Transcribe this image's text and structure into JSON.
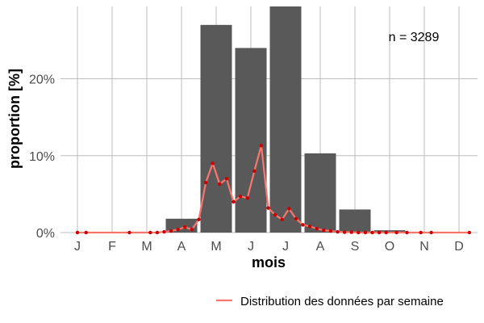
{
  "chart_data": {
    "type": "bar",
    "categories": [
      "J",
      "F",
      "M",
      "A",
      "M",
      "J",
      "J",
      "A",
      "S",
      "O",
      "N",
      "D"
    ],
    "values": [
      0,
      0,
      0,
      1.8,
      27.0,
      24.0,
      29.4,
      10.3,
      3.0,
      0.3,
      0.05,
      0
    ],
    "ylim": [
      0,
      29.4
    ],
    "yticks": [
      0,
      10,
      20
    ],
    "ytick_labels": [
      "0%",
      "10%",
      "20%"
    ],
    "xlabel": "mois",
    "ylabel": "proportion [%]",
    "annotation": "n = 3289",
    "grid": true,
    "bar_color": "#595959",
    "line_series": {
      "name": "Distribution des données par semaine",
      "color": "#f8766d",
      "point_color": "#cc0000",
      "x": [
        1,
        1.25,
        2.5,
        3.1,
        3.3,
        3.5,
        3.7,
        3.9,
        4.1,
        4.3,
        4.5,
        4.7,
        4.9,
        5.1,
        5.3,
        5.5,
        5.7,
        5.9,
        6.1,
        6.3,
        6.5,
        6.7,
        6.9,
        7.1,
        7.3,
        7.5,
        7.7,
        7.9,
        8.1,
        8.3,
        8.5,
        8.7,
        8.9,
        9.1,
        9.3,
        9.5,
        9.7,
        9.9,
        10.2,
        10.5,
        10.9,
        11.2,
        12.3
      ],
      "y": [
        0,
        0,
        0,
        0,
        0,
        0.1,
        0.2,
        0.4,
        0.7,
        0.4,
        1.7,
        6.5,
        9.0,
        6.3,
        7.0,
        4.0,
        4.7,
        4.5,
        8.0,
        11.3,
        3.2,
        2.3,
        1.7,
        3.1,
        1.8,
        1.0,
        0.8,
        0.5,
        0.3,
        0.2,
        0.1,
        0.05,
        0.05,
        0,
        0,
        0,
        0,
        0,
        0,
        0,
        0,
        0,
        0
      ]
    },
    "legend": {
      "position": "bottom-right"
    }
  }
}
